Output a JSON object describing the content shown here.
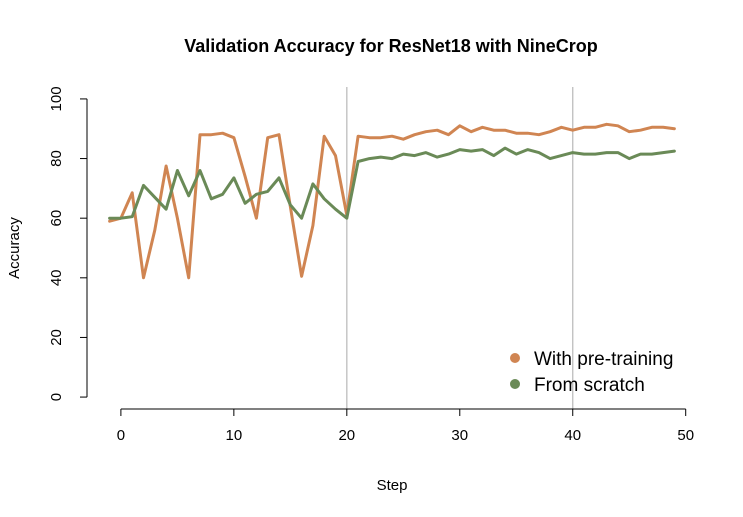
{
  "chart_data": {
    "type": "line",
    "title": "Validation Accuracy for ResNet18 with NineCrop",
    "xlabel": "Step",
    "ylabel": "Accuracy",
    "xlim": [
      -3,
      51
    ],
    "ylim": [
      -4,
      104
    ],
    "xticks": [
      0,
      10,
      20,
      30,
      40,
      50
    ],
    "yticks": [
      0,
      20,
      40,
      60,
      80,
      100
    ],
    "vertical_lines": [
      20,
      40
    ],
    "grid": false,
    "legend_position": "bottom-right",
    "series": [
      {
        "name": "With pre-training",
        "color": "#d08552",
        "x": [
          -1,
          0,
          1,
          2,
          3,
          4,
          5,
          6,
          7,
          8,
          9,
          10,
          11,
          12,
          13,
          14,
          15,
          16,
          17,
          18,
          19,
          20,
          21,
          22,
          23,
          24,
          25,
          26,
          27,
          28,
          29,
          30,
          31,
          32,
          33,
          34,
          35,
          36,
          37,
          38,
          39,
          40,
          41,
          42,
          43,
          44,
          45,
          46,
          47,
          48,
          49
        ],
        "values": [
          59,
          60,
          68.5,
          40,
          56,
          77.5,
          60,
          40,
          88,
          88,
          88.5,
          87,
          74,
          60,
          87,
          88,
          64,
          40.5,
          57.5,
          87.5,
          81,
          61,
          87.5,
          87,
          87,
          87.5,
          86.5,
          88,
          89,
          89.5,
          88,
          91,
          89,
          90.5,
          89.5,
          89.5,
          88.5,
          88.5,
          88,
          89,
          90.5,
          89.5,
          90.5,
          90.5,
          91.5,
          91,
          89,
          89.5,
          90.5,
          90.5,
          90
        ]
      },
      {
        "name": "From scratch",
        "color": "#6a8a57",
        "x": [
          -1,
          0,
          1,
          2,
          3,
          4,
          5,
          6,
          7,
          8,
          9,
          10,
          11,
          12,
          13,
          14,
          15,
          16,
          17,
          18,
          19,
          20,
          21,
          22,
          23,
          24,
          25,
          26,
          27,
          28,
          29,
          30,
          31,
          32,
          33,
          34,
          35,
          36,
          37,
          38,
          39,
          40,
          41,
          42,
          43,
          44,
          45,
          46,
          47,
          48,
          49
        ],
        "values": [
          60,
          60,
          60.5,
          71,
          67,
          63,
          76,
          67.5,
          76,
          66.5,
          68,
          73.5,
          65,
          68,
          69,
          73.5,
          64.5,
          60,
          71.5,
          66.5,
          63,
          60,
          79,
          80,
          80.5,
          80,
          81.5,
          81,
          82,
          80.5,
          81.5,
          83,
          82.5,
          83,
          81,
          83.5,
          81.5,
          83,
          82,
          80,
          81,
          82,
          81.5,
          81.5,
          82,
          82,
          80,
          81.5,
          81.5,
          82,
          82.5
        ]
      }
    ]
  }
}
